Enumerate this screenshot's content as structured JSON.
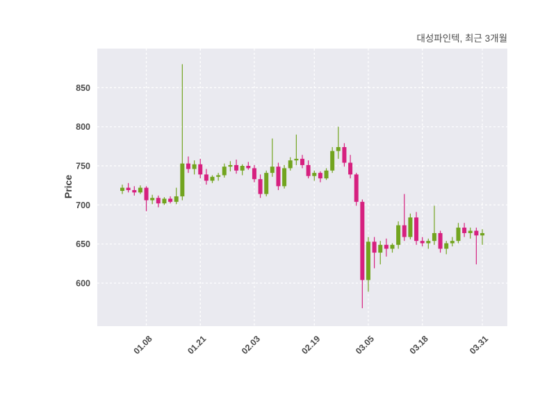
{
  "chart_data": {
    "type": "candlestick",
    "title": "대성파인텍, 최근 3개월",
    "ylabel": "Price",
    "xlabel": "",
    "ylim": [
      545,
      900
    ],
    "yticks": [
      600,
      650,
      700,
      750,
      800,
      850
    ],
    "xticks": [
      {
        "index": 4,
        "label": "01.08"
      },
      {
        "index": 13,
        "label": "01.21"
      },
      {
        "index": 22,
        "label": "02.03"
      },
      {
        "index": 32,
        "label": "02.19"
      },
      {
        "index": 41,
        "label": "03.05"
      },
      {
        "index": 50,
        "label": "03.18"
      },
      {
        "index": 60,
        "label": "03.31"
      }
    ],
    "up_color": "#72a41f",
    "down_color": "#d6207f",
    "plot_bg": "#eaeaf0",
    "grid_color": "#ffffff",
    "legend": "none",
    "grid": "on",
    "candles_format": "[open, high, low, close]",
    "candles": [
      [
        718,
        726,
        714,
        722
      ],
      [
        722,
        728,
        716,
        719
      ],
      [
        719,
        724,
        712,
        716
      ],
      [
        716,
        725,
        714,
        722
      ],
      [
        722,
        724,
        692,
        706
      ],
      [
        706,
        713,
        701,
        709
      ],
      [
        709,
        712,
        697,
        702
      ],
      [
        702,
        710,
        700,
        708
      ],
      [
        708,
        711,
        702,
        704
      ],
      [
        704,
        722,
        701,
        711
      ],
      [
        711,
        880,
        706,
        753
      ],
      [
        753,
        762,
        741,
        746
      ],
      [
        746,
        757,
        739,
        752
      ],
      [
        752,
        759,
        734,
        739
      ],
      [
        739,
        746,
        726,
        731
      ],
      [
        731,
        738,
        728,
        736
      ],
      [
        736,
        741,
        731,
        738
      ],
      [
        738,
        753,
        735,
        749
      ],
      [
        749,
        756,
        743,
        751
      ],
      [
        751,
        758,
        740,
        744
      ],
      [
        744,
        752,
        738,
        750
      ],
      [
        750,
        755,
        745,
        747
      ],
      [
        747,
        751,
        729,
        733
      ],
      [
        733,
        739,
        709,
        714
      ],
      [
        714,
        744,
        711,
        741
      ],
      [
        741,
        785,
        736,
        749
      ],
      [
        749,
        754,
        719,
        724
      ],
      [
        724,
        751,
        721,
        747
      ],
      [
        747,
        761,
        744,
        757
      ],
      [
        757,
        790,
        751,
        759
      ],
      [
        759,
        764,
        747,
        751
      ],
      [
        751,
        757,
        734,
        737
      ],
      [
        737,
        744,
        731,
        741
      ],
      [
        741,
        743,
        729,
        734
      ],
      [
        734,
        747,
        732,
        744
      ],
      [
        744,
        774,
        741,
        769
      ],
      [
        769,
        800,
        759,
        774
      ],
      [
        774,
        779,
        749,
        754
      ],
      [
        754,
        764,
        734,
        739
      ],
      [
        739,
        741,
        699,
        704
      ],
      [
        704,
        707,
        568,
        604
      ],
      [
        604,
        659,
        589,
        653
      ],
      [
        653,
        659,
        619,
        639
      ],
      [
        639,
        654,
        624,
        649
      ],
      [
        649,
        657,
        634,
        644
      ],
      [
        644,
        651,
        639,
        649
      ],
      [
        649,
        679,
        644,
        674
      ],
      [
        674,
        714,
        654,
        659
      ],
      [
        659,
        689,
        656,
        684
      ],
      [
        684,
        691,
        649,
        654
      ],
      [
        654,
        659,
        647,
        651
      ],
      [
        651,
        657,
        644,
        654
      ],
      [
        654,
        699,
        649,
        664
      ],
      [
        664,
        667,
        639,
        644
      ],
      [
        644,
        654,
        637,
        651
      ],
      [
        651,
        659,
        647,
        654
      ],
      [
        654,
        677,
        651,
        671
      ],
      [
        671,
        677,
        659,
        664
      ],
      [
        664,
        671,
        657,
        667
      ],
      [
        667,
        671,
        624,
        661
      ],
      [
        661,
        669,
        649,
        664
      ]
    ]
  }
}
